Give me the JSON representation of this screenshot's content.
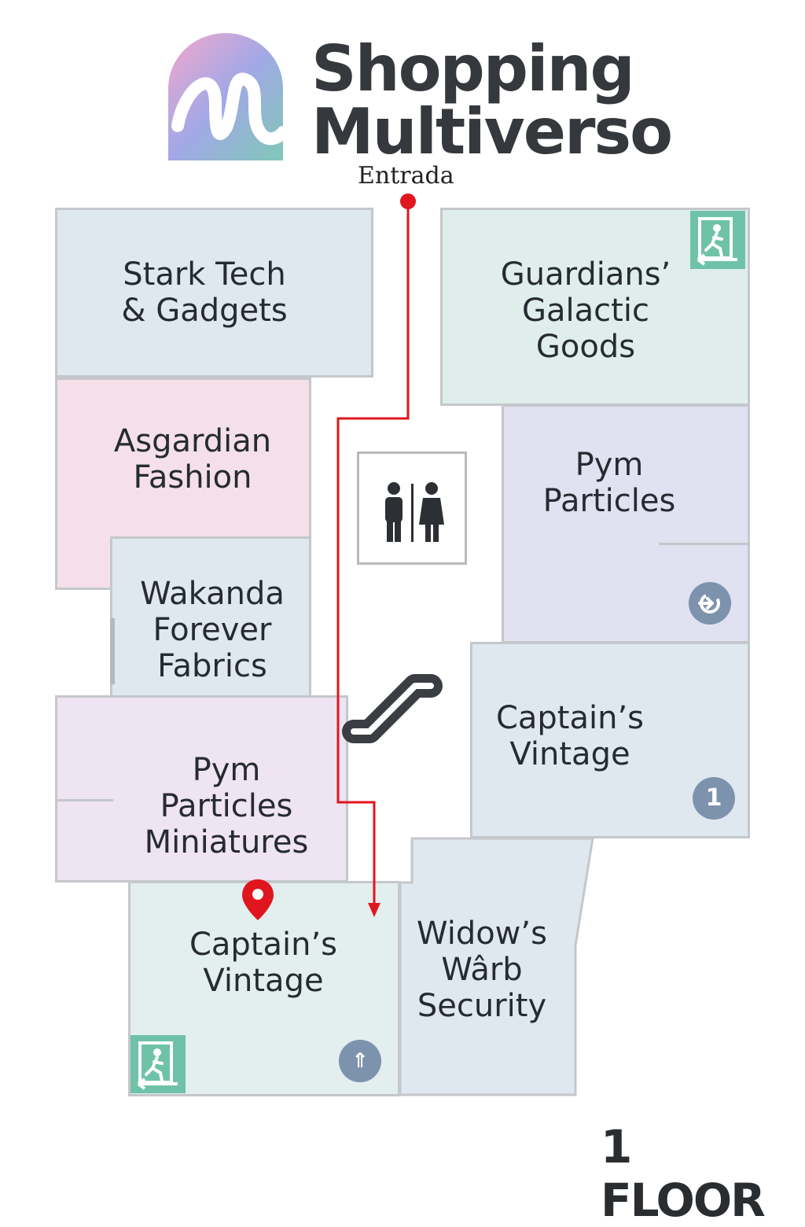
{
  "brand": {
    "line1": "Shopping",
    "line2": "Multiverso",
    "entrance_label": "Entrada"
  },
  "stores": {
    "stark": "Stark Tech\n& Gadgets",
    "guardians": "Guardians’\nGalactic\nGoods",
    "asgardian": "Asgardian\nFashion",
    "pym": "Pym\nParticles",
    "wakanda": "Wakanda\nForever\nFabrics",
    "captain_right": "Captain’s\nVintage",
    "pym_mini": "Pym\nParticles\nMiniatures",
    "captain_bottom": "Captain’s\nVintage",
    "widow": "Widow’s\nWârb\nSecurity"
  },
  "badges": {
    "captain_right": "1",
    "captain_bottom": "⇑"
  },
  "floor_label": "1 FLOOR",
  "icons": {
    "restroom": "restroom-icon",
    "escalator": "escalator-icon",
    "exit": "emergency-exit-icon",
    "location": "location-pin-icon",
    "entrance_dot": "entrance-dot-icon"
  },
  "colors": {
    "route": "#e0161f",
    "exit_green": "#6fc2a8",
    "badge": "#7d92ad"
  }
}
